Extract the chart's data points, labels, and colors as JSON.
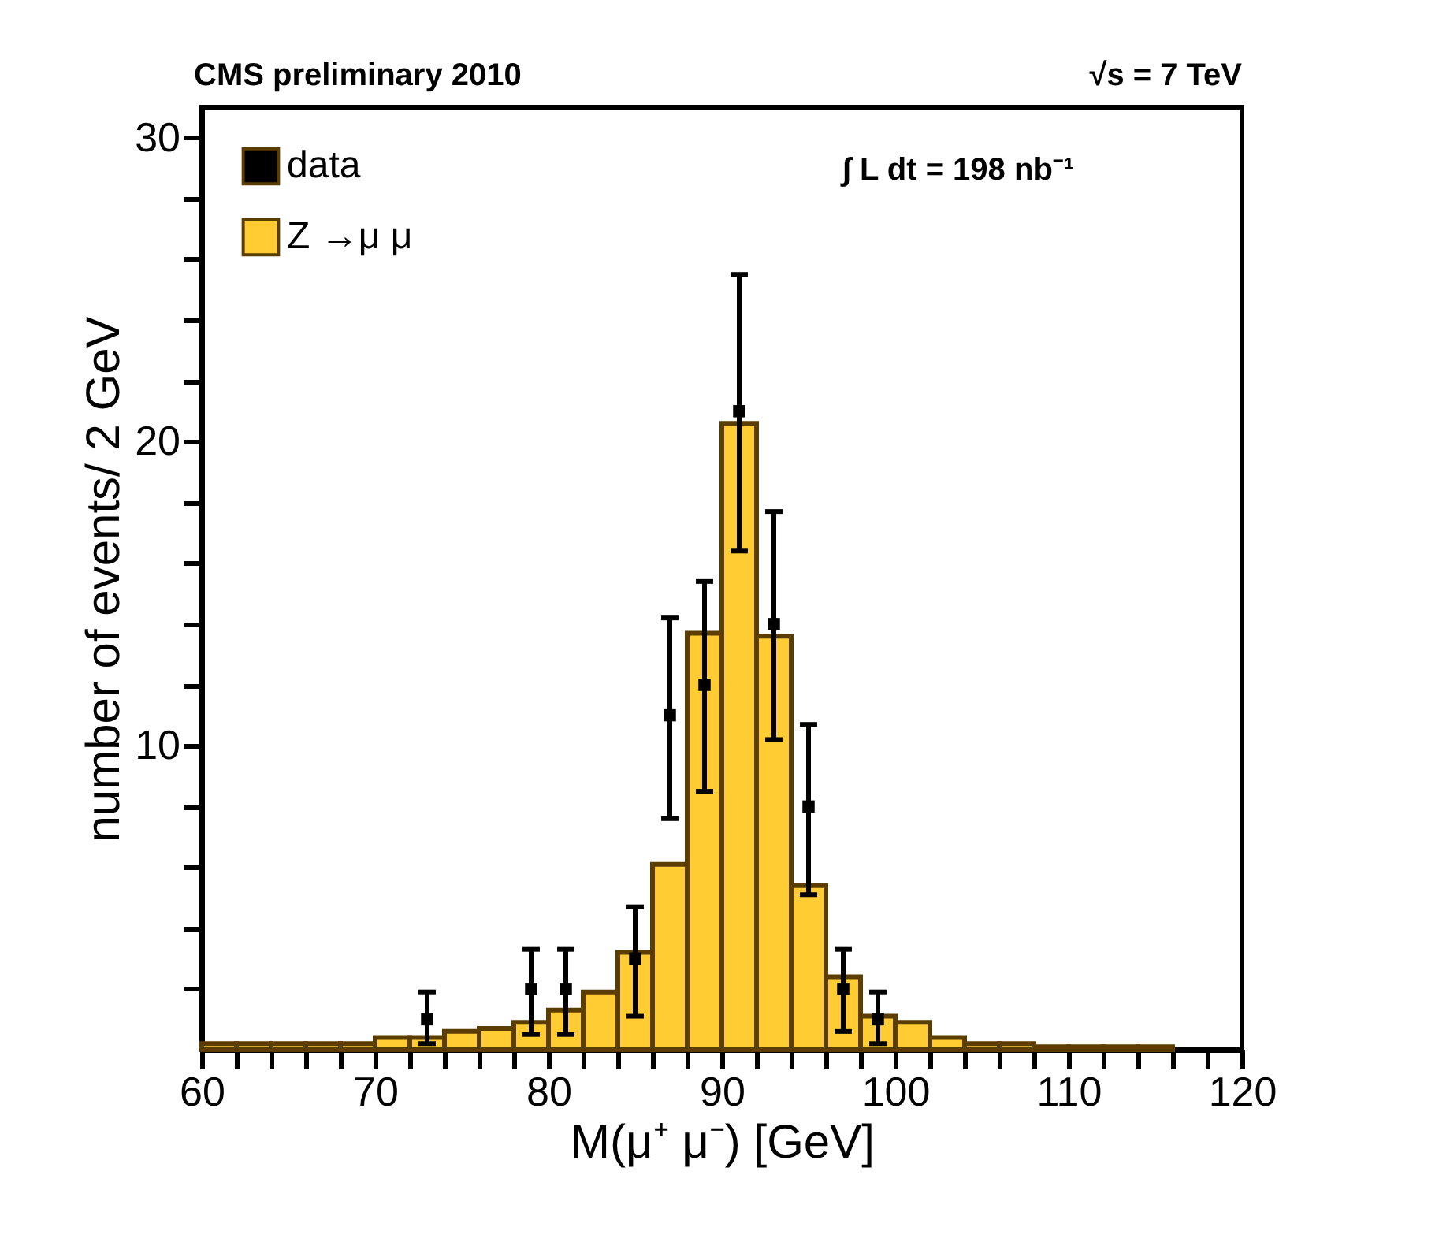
{
  "chart_data": {
    "type": "histogram",
    "annotations": [
      "CMS preliminary 2010",
      "√s = 7 TeV",
      "∫ L dt = 198 nb⁻¹"
    ],
    "xlabel": "M(μ⁺ μ⁻) [GeV]",
    "ylabel": "number of events/ 2 GeV",
    "xlim": [
      60,
      120
    ],
    "ylim": [
      0,
      31
    ],
    "xticks": [
      60,
      {
        "value": 62,
        "label": null
      },
      {
        "value": 64,
        "label": null
      },
      {
        "value": 66,
        "label": null
      },
      {
        "value": 68,
        "label": null
      },
      70,
      {
        "value": 72,
        "label": null
      },
      {
        "value": 74,
        "label": null
      },
      {
        "value": 76,
        "label": null
      },
      {
        "value": 78,
        "label": null
      },
      80,
      {
        "value": 82,
        "label": null
      },
      {
        "value": 84,
        "label": null
      },
      {
        "value": 86,
        "label": null
      },
      {
        "value": 88,
        "label": null
      },
      90,
      {
        "value": 92,
        "label": null
      },
      {
        "value": 94,
        "label": null
      },
      {
        "value": 96,
        "label": null
      },
      {
        "value": 98,
        "label": null
      },
      100,
      {
        "value": 102,
        "label": null
      },
      {
        "value": 104,
        "label": null
      },
      {
        "value": 106,
        "label": null
      },
      {
        "value": 108,
        "label": null
      },
      110,
      {
        "value": 112,
        "label": null
      },
      {
        "value": 114,
        "label": null
      },
      {
        "value": 116,
        "label": null
      },
      {
        "value": 118,
        "label": null
      },
      120
    ],
    "yticks": [
      {
        "value": 2,
        "label": null
      },
      {
        "value": 4,
        "label": null
      },
      {
        "value": 6,
        "label": null
      },
      {
        "value": 8,
        "label": null
      },
      10,
      {
        "value": 12,
        "label": null
      },
      {
        "value": 14,
        "label": null
      },
      {
        "value": 16,
        "label": null
      },
      {
        "value": 18,
        "label": null
      },
      20,
      {
        "value": 22,
        "label": null
      },
      {
        "value": 24,
        "label": null
      },
      {
        "value": 26,
        "label": null
      },
      {
        "value": 28,
        "label": null
      },
      30
    ],
    "legend": "top left",
    "marker": "square",
    "series": [
      {
        "type": "scatter",
        "name": "data",
        "color": "#000000",
        "x": [
          73,
          79,
          81,
          85,
          87,
          89,
          91,
          93,
          95,
          97,
          99
        ],
        "values": [
          1,
          2,
          2,
          3,
          11,
          12,
          21,
          14,
          8,
          2,
          1
        ],
        "errors": [
          [
            0.2,
            1.9
          ],
          [
            0.5,
            3.3
          ],
          [
            0.5,
            3.3
          ],
          [
            1.1,
            4.7
          ],
          [
            7.6,
            14.2
          ],
          [
            8.5,
            15.4
          ],
          [
            16.4,
            25.5
          ],
          [
            10.2,
            17.7
          ],
          [
            5.1,
            10.7
          ],
          [
            0.6,
            3.3
          ],
          [
            0.2,
            1.9
          ]
        ]
      },
      {
        "name": "Z →μ μ",
        "color": "#ffcc33",
        "bins": [
          60,
          62,
          64,
          66,
          68,
          70,
          72,
          74,
          76,
          78,
          80,
          82,
          84,
          86,
          88,
          90,
          92,
          94,
          96,
          98,
          100,
          102,
          104,
          106,
          108,
          110,
          112,
          114,
          116
        ],
        "values": [
          0.2,
          0.2,
          0.2,
          0.2,
          0.2,
          0.4,
          0.4,
          0.6,
          0.7,
          0.9,
          1.3,
          1.9,
          3.2,
          6.1,
          13.7,
          20.6,
          13.6,
          5.4,
          2.4,
          1.1,
          0.9,
          0.4,
          0.2,
          0.2,
          0.1,
          0.1,
          0.1,
          0.1
        ]
      }
    ]
  }
}
